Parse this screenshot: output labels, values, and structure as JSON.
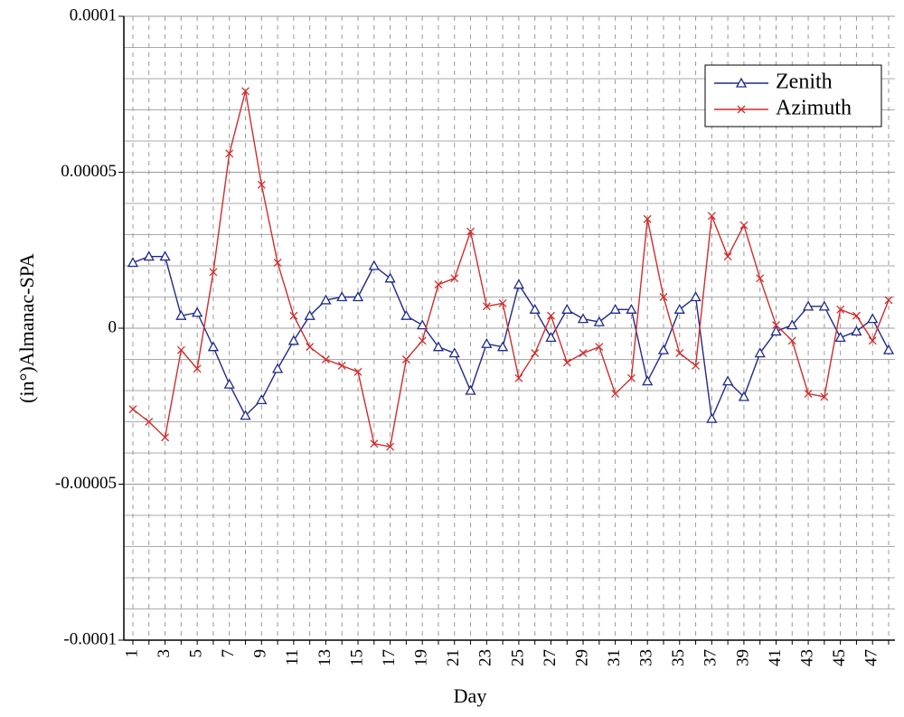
{
  "chart_data": {
    "type": "line",
    "x_label": "Day",
    "y_label": "(in°)Almanac-SPA",
    "categories": [
      "1",
      null,
      "3",
      null,
      "5",
      null,
      "7",
      null,
      "9",
      null,
      "11",
      null,
      "13",
      null,
      "15",
      null,
      "17",
      null,
      "19",
      null,
      "21",
      null,
      "23",
      null,
      "25",
      null,
      "27",
      null,
      "29",
      null,
      "31",
      null,
      "33",
      null,
      "35",
      null,
      "37",
      null,
      "39",
      null,
      "41",
      null,
      "43",
      null,
      "45",
      null,
      "47",
      null
    ],
    "series": [
      {
        "name": "Zenith",
        "color": "#1f2a8c",
        "marker": "triangle",
        "values": [
          2.1e-05,
          2.3e-05,
          2.3e-05,
          4e-06,
          5e-06,
          -6e-06,
          -1.8e-05,
          -2.8e-05,
          -2.3e-05,
          -1.3e-05,
          -4e-06,
          4e-06,
          9e-06,
          1e-05,
          1e-05,
          2e-05,
          1.6e-05,
          4e-06,
          1e-06,
          -6e-06,
          -8e-06,
          -2e-05,
          -5e-06,
          -6e-06,
          1.4e-05,
          6e-06,
          -3e-06,
          6e-06,
          3e-06,
          2e-06,
          6e-06,
          6e-06,
          -1.7e-05,
          -7e-06,
          6e-06,
          1e-05,
          -2.9e-05,
          -1.7e-05,
          -2.2e-05,
          -8e-06,
          -1e-06,
          1e-06,
          7e-06,
          7e-06,
          -3e-06,
          -1e-06,
          3e-06,
          -7e-06
        ]
      },
      {
        "name": "Azimuth",
        "color": "#d42b2b",
        "marker": "x",
        "values": [
          -2.6e-05,
          -3e-05,
          -3.5e-05,
          -7e-06,
          -1.3e-05,
          1.8e-05,
          5.6e-05,
          7.6e-05,
          4.6e-05,
          2.1e-05,
          4e-06,
          -6e-06,
          -1e-05,
          -1.2e-05,
          -1.4e-05,
          -3.7e-05,
          -3.8e-05,
          -1e-05,
          -4e-06,
          1.4e-05,
          1.6e-05,
          3.1e-05,
          7e-06,
          8e-06,
          -1.6e-05,
          -8e-06,
          4e-06,
          -1.1e-05,
          -8e-06,
          -6e-06,
          -2.1e-05,
          -1.6e-05,
          3.5e-05,
          1e-05,
          -8e-06,
          -1.2e-05,
          3.6e-05,
          2.3e-05,
          3.3e-05,
          1.6e-05,
          1e-06,
          -4e-06,
          -2.1e-05,
          -2.2e-05,
          6e-06,
          4e-06,
          -4e-06,
          9e-06
        ]
      }
    ],
    "ylim": [
      -0.0001,
      0.0001
    ],
    "yticks": [
      -0.0001,
      -5e-05,
      0,
      5e-05,
      0.0001
    ],
    "y_minor_ticks": [
      -9e-05,
      -8e-05,
      -7e-05,
      -6e-05,
      -4e-05,
      -3e-05,
      -2e-05,
      -1e-05,
      1e-05,
      2e-05,
      3e-05,
      4e-05,
      6e-05,
      7e-05,
      8e-05,
      9e-05
    ],
    "grid": true,
    "legend": "upper right"
  }
}
